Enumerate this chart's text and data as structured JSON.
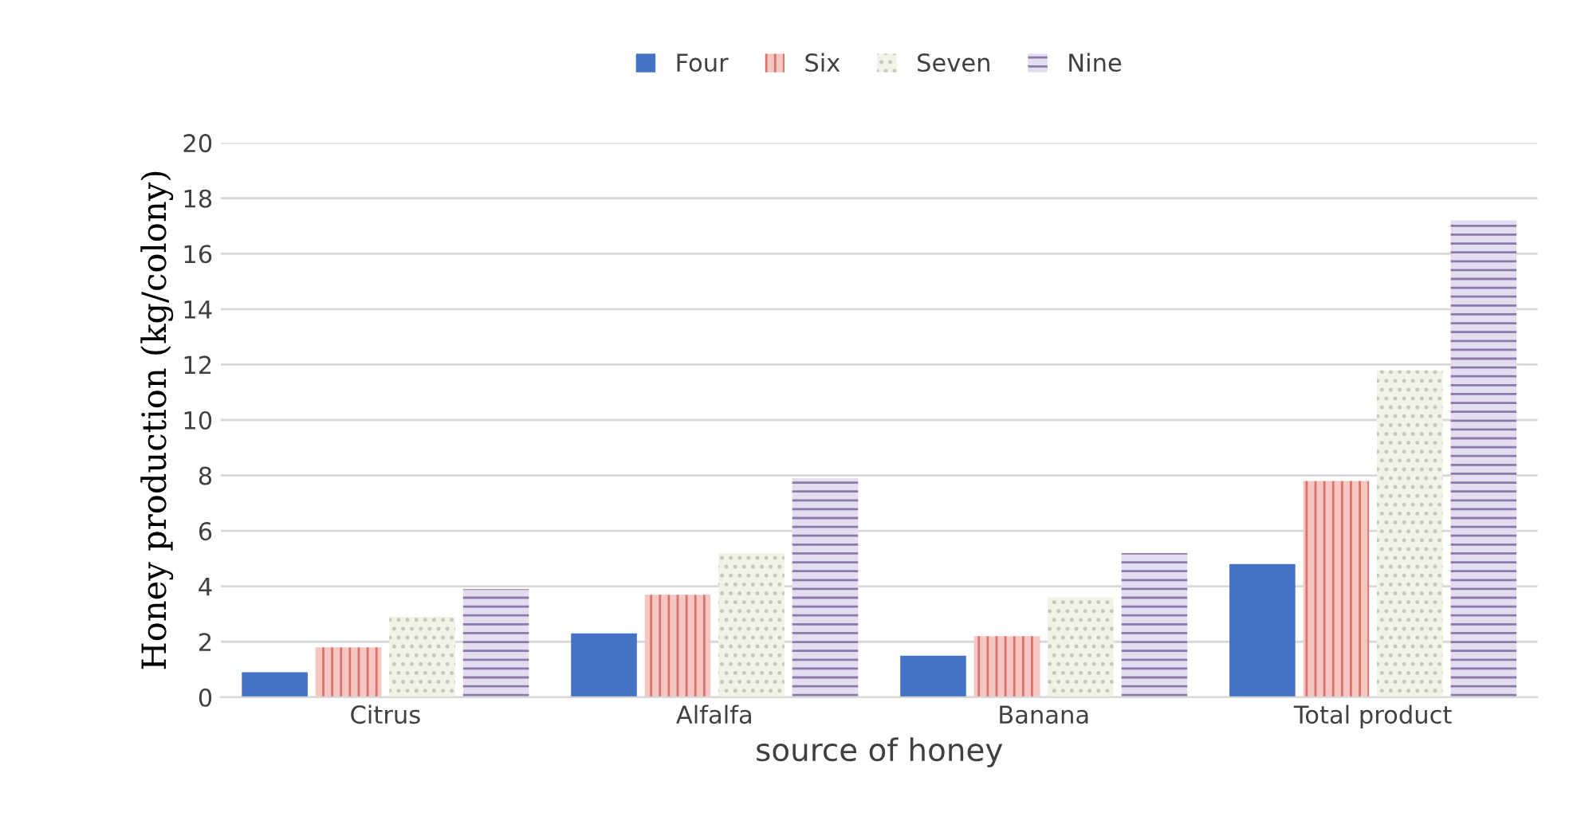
{
  "chart_data": {
    "type": "bar",
    "xlabel": "source of honey",
    "ylabel": "Honey production (kg/colony)",
    "categories": [
      "Citrus",
      "Alfalfa",
      "Banana",
      "Total product"
    ],
    "series": [
      {
        "name": "Four",
        "color": "#4472c4",
        "values": [
          0.9,
          2.3,
          1.5,
          4.8
        ]
      },
      {
        "name": "Six",
        "color": "#f4c7c3",
        "values": [
          1.8,
          3.7,
          2.2,
          7.8
        ]
      },
      {
        "name": "Seven",
        "color": "#f1f3e6",
        "values": [
          2.9,
          5.2,
          3.6,
          11.8
        ]
      },
      {
        "name": "Nine",
        "color": "#e4dcef",
        "values": [
          3.9,
          7.9,
          5.2,
          17.2
        ]
      }
    ],
    "ylim": [
      0,
      20
    ],
    "yticks": [
      0,
      2,
      4,
      6,
      8,
      10,
      12,
      14,
      16,
      18,
      20
    ],
    "grid": "y",
    "legend": "top"
  }
}
